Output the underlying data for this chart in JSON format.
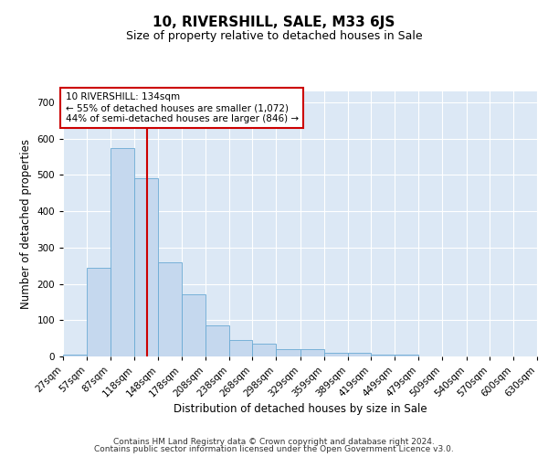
{
  "title": "10, RIVERSHILL, SALE, M33 6JS",
  "subtitle": "Size of property relative to detached houses in Sale",
  "xlabel": "Distribution of detached houses by size in Sale",
  "ylabel": "Number of detached properties",
  "bar_color": "#c5d8ee",
  "bar_edge_color": "#6aaad4",
  "background_color": "#dce8f5",
  "grid_color": "#ffffff",
  "redline_x": 134,
  "annotation_text": "10 RIVERSHILL: 134sqm\n← 55% of detached houses are smaller (1,072)\n44% of semi-detached houses are larger (846) →",
  "annotation_box_color": "#ffffff",
  "annotation_box_edge": "#cc0000",
  "redline_color": "#cc0000",
  "ylim": [
    0,
    730
  ],
  "yticks": [
    0,
    100,
    200,
    300,
    400,
    500,
    600,
    700
  ],
  "bins": [
    27,
    57,
    87,
    118,
    148,
    178,
    208,
    238,
    268,
    298,
    329,
    359,
    389,
    419,
    449,
    479,
    509,
    540,
    570,
    600,
    630
  ],
  "bin_labels": [
    "27sqm",
    "57sqm",
    "87sqm",
    "118sqm",
    "148sqm",
    "178sqm",
    "208sqm",
    "238sqm",
    "268sqm",
    "298sqm",
    "329sqm",
    "359sqm",
    "389sqm",
    "419sqm",
    "449sqm",
    "479sqm",
    "509sqm",
    "540sqm",
    "570sqm",
    "600sqm",
    "630sqm"
  ],
  "values": [
    5,
    245,
    575,
    490,
    260,
    170,
    85,
    45,
    35,
    20,
    20,
    10,
    10,
    5,
    5,
    0,
    0,
    0,
    0,
    0
  ],
  "footer_line1": "Contains HM Land Registry data © Crown copyright and database right 2024.",
  "footer_line2": "Contains public sector information licensed under the Open Government Licence v3.0.",
  "title_fontsize": 11,
  "subtitle_fontsize": 9,
  "axis_label_fontsize": 8.5,
  "tick_fontsize": 7.5,
  "annotation_fontsize": 7.5,
  "footer_fontsize": 6.5
}
